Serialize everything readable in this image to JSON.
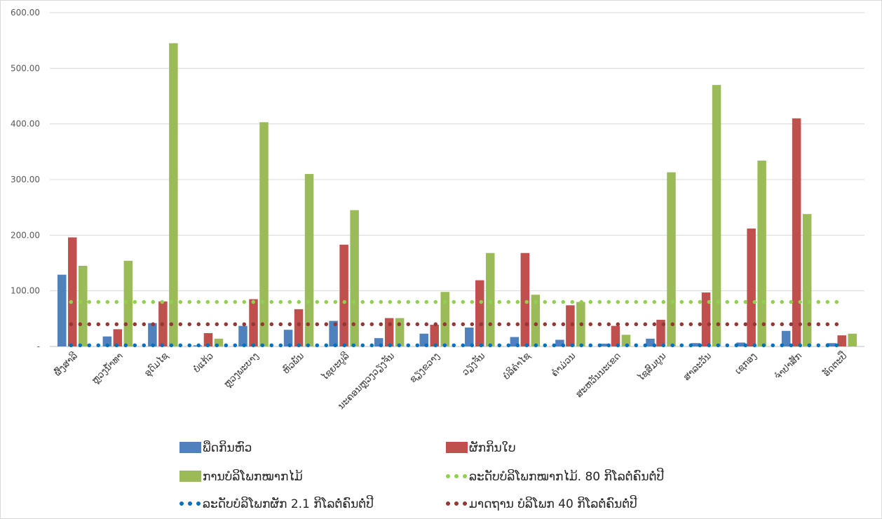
{
  "chart_data": {
    "type": "bar",
    "title": "",
    "xlabel": "",
    "ylabel": "",
    "ylim": [
      0,
      600
    ],
    "yticks": [
      "600.00",
      "500.00",
      "400.00",
      "300.00",
      "200.00",
      "100.00",
      "-"
    ],
    "grid": true,
    "legend_position": "bottom",
    "categories": [
      "ຜົ້ງສາລີ",
      "ຫຼວງນ້ຳທາ",
      "ອຸດົມໄຊ",
      "ບໍ່ແກ້ວ",
      "ຫຼວງພະບາງ",
      "ຫົວພັນ",
      "ໄຊຍະບູລີ",
      "ນະຄອນຫຼວງວຽງຈັນ",
      "ຊຽງຂວາງ",
      "ວຽງຈັນ",
      "ບໍລິຄຳໄຊ",
      "ຄຳມ່ວນ",
      "ສະຫວັນນະເຂດ",
      "ໄຊສົມບູນ",
      "ສາລະວັນ",
      "ເຊກອງ",
      "ຈຳປາສັກ",
      "ອັດຕະປື"
    ],
    "series": [
      {
        "name": "ພືດກິນຫົວ",
        "kind": "bar",
        "color": "#4f81bd",
        "values": [
          129,
          18,
          42,
          2,
          37,
          30,
          46,
          15,
          23,
          34,
          17,
          12,
          5,
          14,
          6,
          7,
          28,
          6
        ]
      },
      {
        "name": "ຜັກກິນໃບ",
        "kind": "bar",
        "color": "#c0504d",
        "values": [
          196,
          31,
          81,
          24,
          85,
          67,
          183,
          51,
          39,
          119,
          168,
          74,
          37,
          48,
          97,
          212,
          410,
          20
        ]
      },
      {
        "name": "ການບໍລິໂພກໝາກໄມ້",
        "kind": "bar",
        "color": "#9bbb59",
        "values": [
          145,
          154,
          545,
          14,
          403,
          310,
          245,
          51,
          98,
          168,
          93,
          80,
          21,
          313,
          470,
          334,
          238,
          23
        ]
      },
      {
        "name": "ລະດັບບໍລິໂພກໝາກໄມ້. 80 ກິໂລຕໍ່ຄົນຕໍ່ປີ",
        "kind": "dotted_line",
        "color": "#92d050",
        "value": 80
      },
      {
        "name": "ລະດັບບໍລິໂພກຜັກ 2.1 ກິໂລຕໍ່ຄົນຕໍ່ປີ",
        "kind": "dotted_line",
        "color": "#0070c0",
        "value": 2.1
      },
      {
        "name": "ມາດຖານ ບໍລິໂພກ 40 ກິໂລຕໍ່ຄົນຕໍ່ປີ",
        "kind": "dotted_line",
        "color": "#943634",
        "value": 40
      }
    ]
  }
}
